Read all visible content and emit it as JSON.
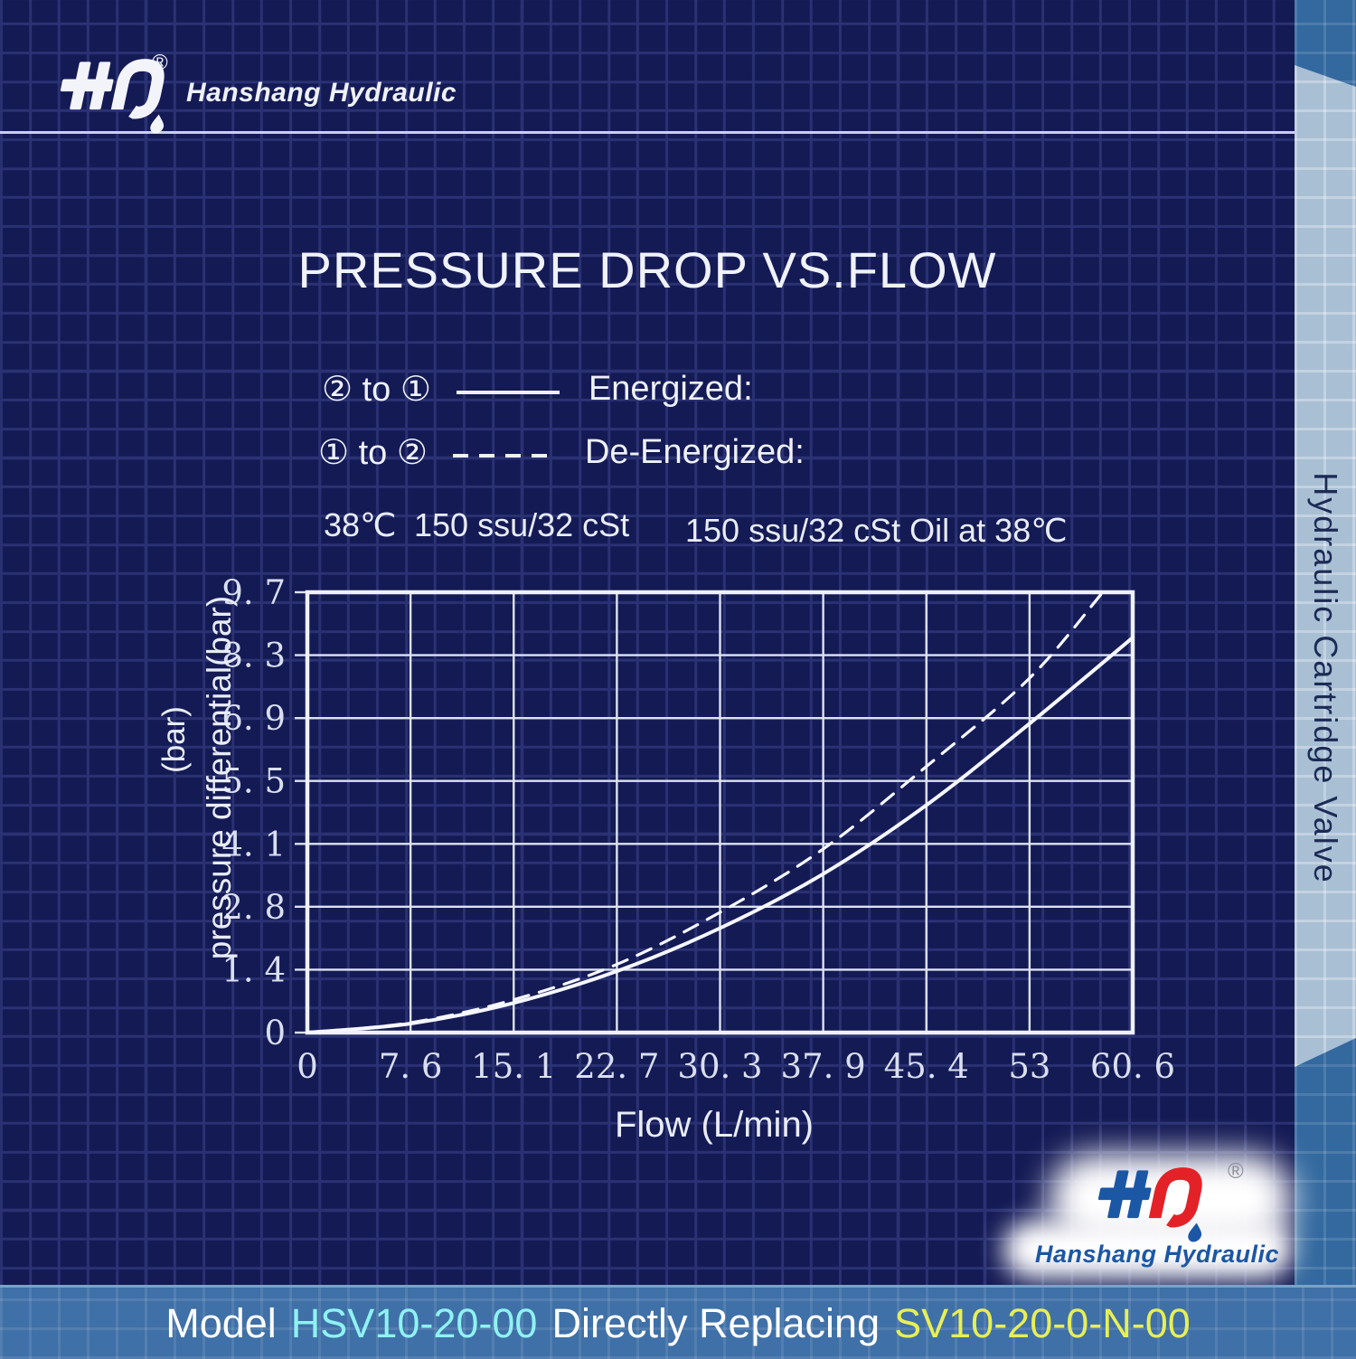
{
  "header": {
    "brand": "Hanshang Hydraulic",
    "registered": "®"
  },
  "sidebar": {
    "label": "Hydraulic Cartridge Valve"
  },
  "title": "PRESSURE DROP VS.FLOW",
  "legend": {
    "row1": {
      "path": "② to ①",
      "label": "Energized:"
    },
    "row2": {
      "path": "① to ②",
      "label": "De-Energized:"
    }
  },
  "conditions": {
    "temp": "38℃",
    "viscosity": "150 ssu/32 cSt",
    "oil": "150 ssu/32 cSt Oil at 38℃"
  },
  "chart_data": {
    "type": "line",
    "title": "PRESSURE DROP VS.FLOW",
    "xlabel": "Flow (L/min)",
    "ylabel": "pressure differential(bar)",
    "ylabel_secondary": "(bar)",
    "xlim": [
      0,
      60.6
    ],
    "ylim": [
      0,
      9.7
    ],
    "x_ticks": [
      "0",
      "7. 6",
      "15. 1",
      "22. 7",
      "30. 3",
      "37. 9",
      "45. 4",
      "53",
      "60. 6"
    ],
    "y_ticks": [
      "0",
      "1. 4",
      "2. 8",
      "4. 1",
      "5. 5",
      "6. 9",
      "8. 3",
      "9. 7"
    ],
    "grid": true,
    "legend_position": "above-left",
    "series": [
      {
        "name": "Energized: 2 to 1",
        "style": "solid",
        "x": [
          0,
          7.6,
          15.1,
          22.7,
          30.3,
          37.9,
          45.4,
          53,
          60.6
        ],
        "y": [
          0,
          0.2,
          0.65,
          1.35,
          2.3,
          3.5,
          5.0,
          6.8,
          8.7
        ]
      },
      {
        "name": "De-Energized: 1 to 2",
        "style": "dashed",
        "x": [
          0,
          7.6,
          15.1,
          22.7,
          30.3,
          37.9,
          45.4,
          53,
          58.4
        ],
        "y": [
          0,
          0.22,
          0.72,
          1.5,
          2.65,
          4.05,
          5.85,
          7.8,
          9.7
        ]
      }
    ]
  },
  "footer": {
    "model_prefix": "Model",
    "model": "HSV10-20-00",
    "middle": "Directly Replacing",
    "replacement": "SV10-20-0-N-00"
  },
  "footer_logo": {
    "brand": "Hanshang Hydraulic",
    "registered": "®"
  },
  "colors": {
    "model_accent": "#8ff2f2",
    "replacement_accent": "#e7ef55",
    "logo_blue": "#1b57a5",
    "logo_red": "#e32228",
    "background": "#141a54",
    "grid_line": "#2b3274",
    "chart_line": "#f5f7fd",
    "footer_bar": "#3f70a7",
    "sidebar_panel": "#a9bfd4"
  }
}
